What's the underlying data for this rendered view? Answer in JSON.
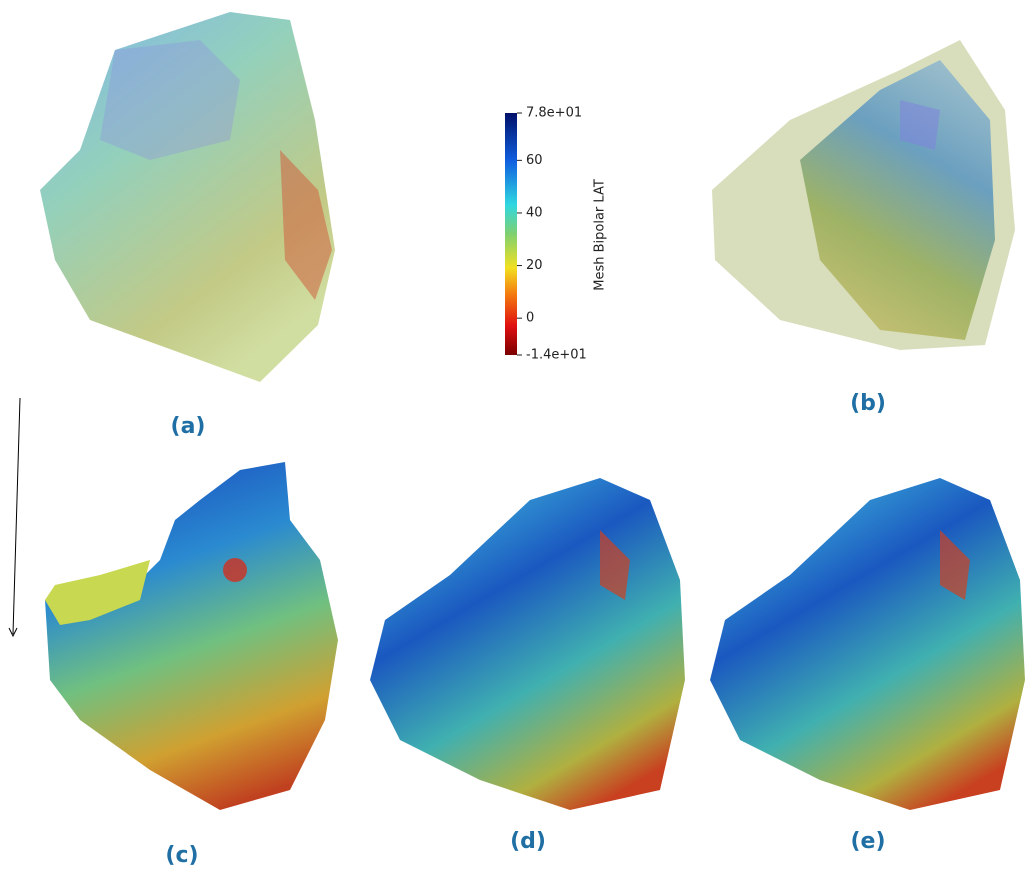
{
  "colorbar": {
    "label": "Mesh Bipolar LAT",
    "lim": [
      -14,
      78
    ],
    "ticks": [
      {
        "value": 78,
        "label": "7.8e+01"
      },
      60,
      40,
      20,
      0,
      {
        "value": -14,
        "label": "-1.4e+01"
      }
    ]
  },
  "panels": {
    "a": "(a)",
    "b": "(b)",
    "c": "(c)",
    "d": "(d)",
    "e": "(e)"
  }
}
